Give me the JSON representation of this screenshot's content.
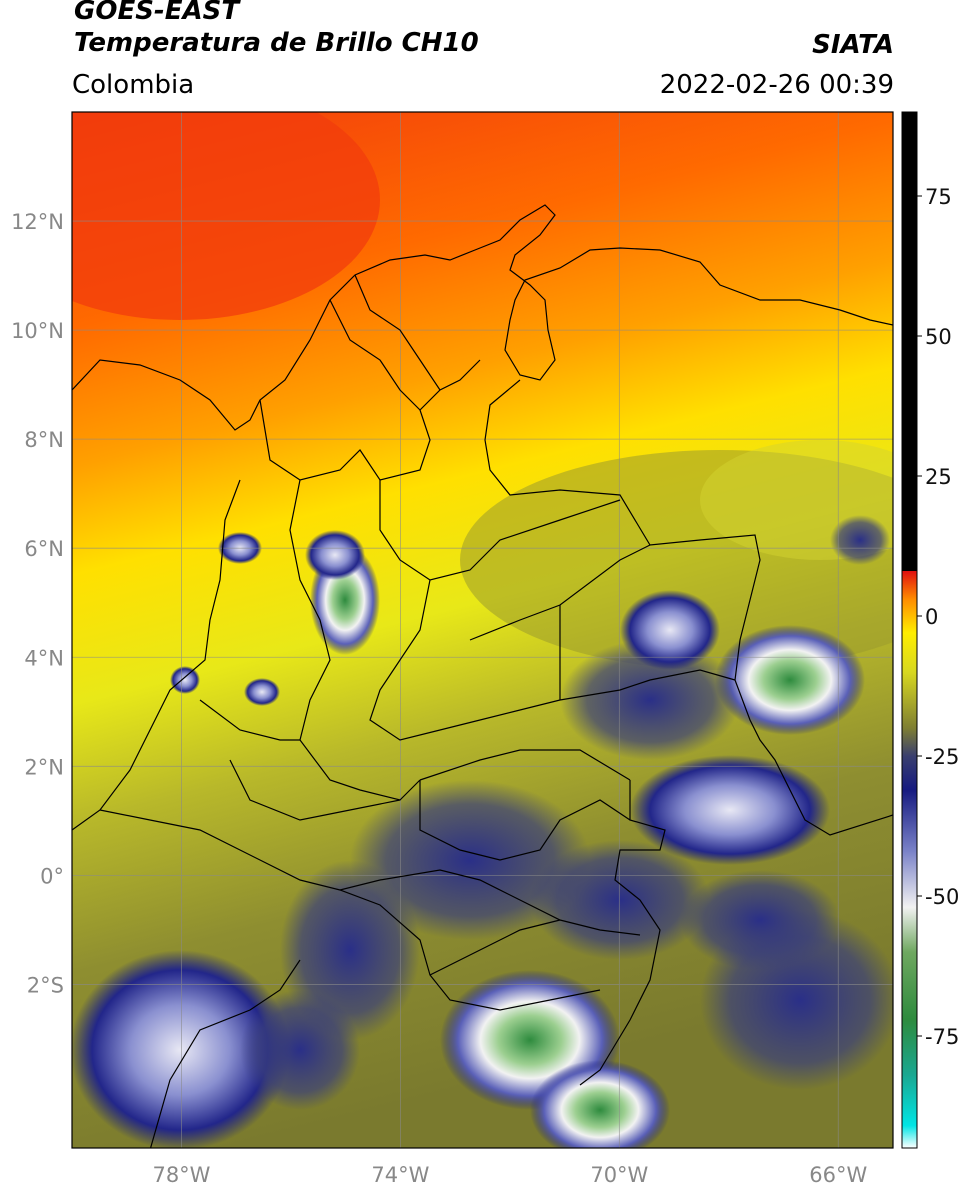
{
  "header": {
    "satellite": "GOES-EAST",
    "product": "Temperatura de Brillo CH10",
    "region": "Colombia",
    "agency": "SIATA",
    "datetime": "2022-02-26 00:39"
  },
  "map": {
    "lon_range": [
      -80,
      -65
    ],
    "lat_range": [
      -5,
      14
    ],
    "lon_ticks": [
      {
        "value": -78,
        "label": "78°W"
      },
      {
        "value": -74,
        "label": "74°W"
      },
      {
        "value": -70,
        "label": "70°W"
      },
      {
        "value": -66,
        "label": "66°W"
      }
    ],
    "lat_ticks": [
      {
        "value": 12,
        "label": "12°N"
      },
      {
        "value": 10,
        "label": "10°N"
      },
      {
        "value": 8,
        "label": "8°N"
      },
      {
        "value": 6,
        "label": "6°N"
      },
      {
        "value": 4,
        "label": "4°N"
      },
      {
        "value": 2,
        "label": "2°N"
      },
      {
        "value": 0,
        "label": "0°"
      },
      {
        "value": -2,
        "label": "2°S"
      }
    ],
    "gridlines": true
  },
  "colorbar": {
    "range": [
      -95,
      90
    ],
    "ticks": [
      {
        "value": 75,
        "label": "75"
      },
      {
        "value": 50,
        "label": "50"
      },
      {
        "value": 25,
        "label": "25"
      },
      {
        "value": 0,
        "label": "0"
      },
      {
        "value": -25,
        "label": "-25"
      },
      {
        "value": -50,
        "label": "-50"
      },
      {
        "value": -75,
        "label": "-75"
      }
    ],
    "stops": [
      {
        "value": -95,
        "color": "#ffffff"
      },
      {
        "value": -91,
        "color": "#00e5e5"
      },
      {
        "value": -82,
        "color": "#1aa892"
      },
      {
        "value": -72,
        "color": "#2e8b3e"
      },
      {
        "value": -60,
        "color": "#6fa860"
      },
      {
        "value": -52,
        "color": "#f2f2f2"
      },
      {
        "value": -42,
        "color": "#7a82c8"
      },
      {
        "value": -31,
        "color": "#161a80"
      },
      {
        "value": -25,
        "color": "#3a3f6e"
      },
      {
        "value": -20,
        "color": "#7f7f32"
      },
      {
        "value": -10,
        "color": "#d8d820"
      },
      {
        "value": -3,
        "color": "#ffee00"
      },
      {
        "value": 3,
        "color": "#ff8c00"
      },
      {
        "value": 8,
        "color": "#e01010"
      },
      {
        "value": 8.01,
        "color": "#000000"
      },
      {
        "value": 90,
        "color": "#000000"
      }
    ]
  }
}
